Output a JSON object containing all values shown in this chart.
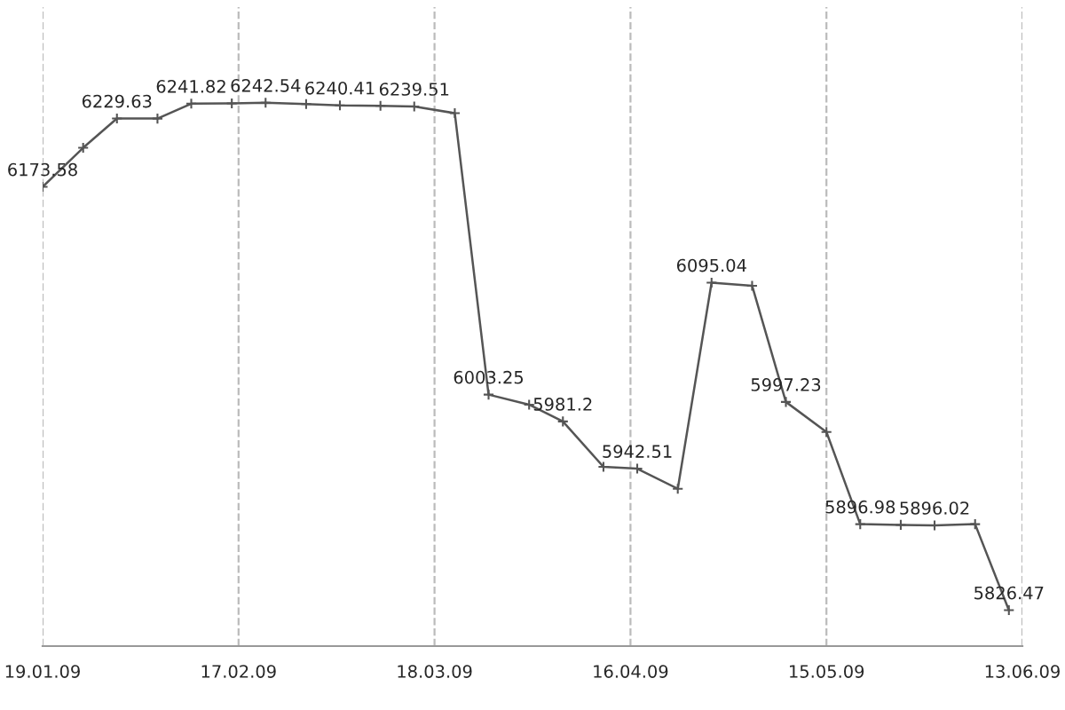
{
  "chart_data": {
    "type": "line",
    "x": [
      "2009-01-19",
      "2009-01-25",
      "2009-01-30",
      "2009-02-05",
      "2009-02-10",
      "2009-02-16",
      "2009-02-21",
      "2009-02-27",
      "2009-03-04",
      "2009-03-10",
      "2009-03-15",
      "2009-03-21",
      "2009-03-26",
      "2009-04-01",
      "2009-04-06",
      "2009-04-12",
      "2009-04-17",
      "2009-04-23",
      "2009-04-28",
      "2009-05-04",
      "2009-05-09",
      "2009-05-15",
      "2009-05-20",
      "2009-05-26",
      "2009-05-31",
      "2009-06-06",
      "2009-06-11"
    ],
    "series": [
      {
        "color": "#555555",
        "values": [
          6173.58,
          6205.6,
          6229.63,
          6229.6,
          6241.82,
          6242.0,
          6242.54,
          6241.5,
          6240.41,
          6240.0,
          6239.51,
          6234.0,
          6003.25,
          5995.0,
          5981.2,
          5944.0,
          5942.51,
          5926.0,
          6095.04,
          6092.5,
          5997.23,
          5972.6,
          5896.98,
          5896.4,
          5896.02,
          5897.0,
          5826.47
        ],
        "value_labels": [
          "6173.58",
          null,
          "6229.63",
          null,
          "6241.82",
          null,
          "6242.54",
          null,
          "6240.41",
          null,
          "6239.51",
          null,
          "6003.25",
          null,
          "5981.2",
          null,
          "5942.51",
          null,
          "6095.04",
          null,
          "5997.23",
          null,
          "5896.98",
          null,
          "5896.02",
          null,
          "5826.47"
        ]
      }
    ],
    "xlim": [
      "2009-01-19",
      "2009-06-13"
    ],
    "xticks": [
      {
        "value": "2009-01-19",
        "label": "19.01.09"
      },
      {
        "value": "2009-02-17",
        "label": "17.02.09"
      },
      {
        "value": "2009-03-18",
        "label": "18.03.09"
      },
      {
        "value": "2009-04-16",
        "label": "16.04.09"
      },
      {
        "value": "2009-05-15",
        "label": "15.05.09"
      },
      {
        "value": "2009-06-13",
        "label": "13.06.09"
      }
    ],
    "ylim": [
      5797,
      6321
    ],
    "tick_labels": "x",
    "grid": "x",
    "marker": "cross",
    "line_style": "solid"
  }
}
